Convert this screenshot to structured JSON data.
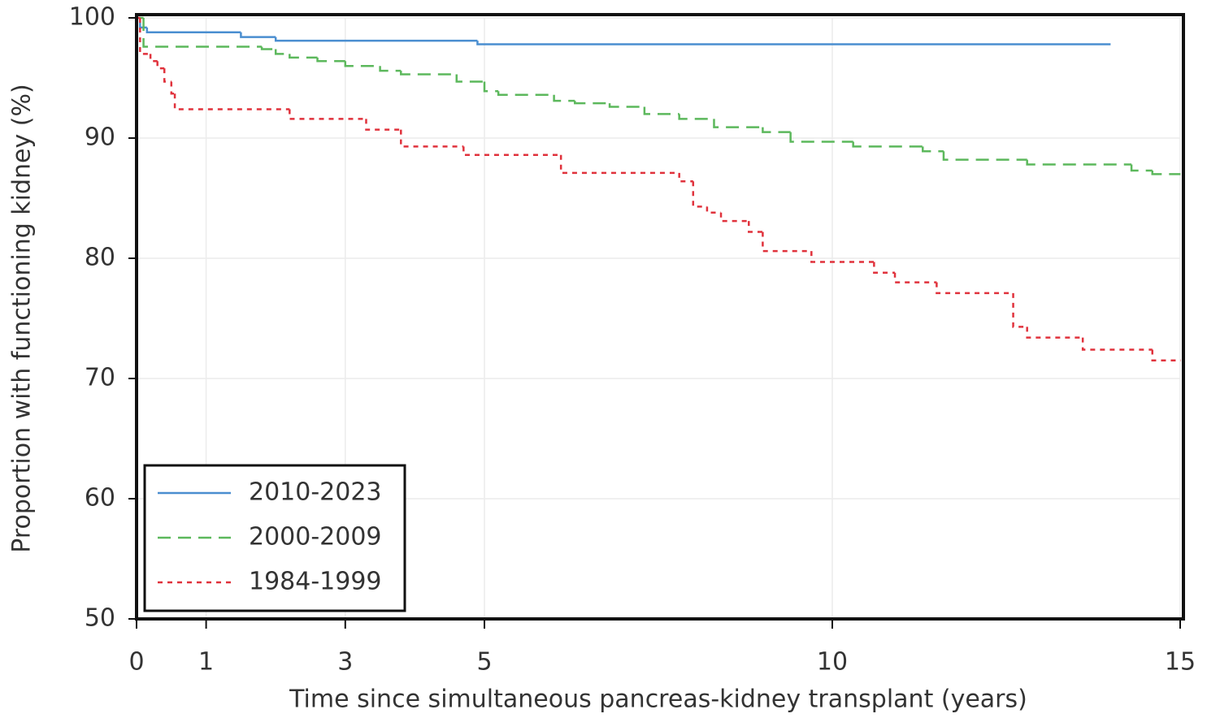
{
  "chart_data": {
    "type": "step",
    "xlabel": "Time since simultaneous pancreas-kidney transplant (years)",
    "ylabel": "Proportion with functioning kidney (%)",
    "xlim": [
      0,
      15
    ],
    "ylim": [
      50,
      100
    ],
    "xticks": [
      0,
      1,
      3,
      5,
      10,
      15
    ],
    "yticks": [
      50,
      60,
      70,
      80,
      90,
      100
    ],
    "grid": true,
    "legend": "lower left",
    "series": [
      {
        "name": "2010-2023",
        "color": "#4a8ed0",
        "dash": "none",
        "x": [
          0,
          0.05,
          0.15,
          1.5,
          2.0,
          4.9,
          14
        ],
        "values": [
          100,
          99.2,
          98.8,
          98.4,
          98.1,
          97.8,
          97.8
        ]
      },
      {
        "name": "2000-2009",
        "color": "#5cb85c",
        "dash": "16 9",
        "x": [
          0,
          0.1,
          1.8,
          2.0,
          2.2,
          2.6,
          3.0,
          3.5,
          3.8,
          4.6,
          5.0,
          5.2,
          6.0,
          6.3,
          6.8,
          7.3,
          7.8,
          8.3,
          9.0,
          9.4,
          10.3,
          11.3,
          11.6,
          12.8,
          14.3,
          14.6,
          15
        ],
        "values": [
          100,
          97.6,
          97.4,
          97.0,
          96.7,
          96.4,
          96.0,
          95.6,
          95.3,
          94.7,
          93.9,
          93.6,
          93.1,
          92.9,
          92.6,
          92.0,
          91.6,
          90.9,
          90.5,
          89.7,
          89.3,
          88.9,
          88.2,
          87.8,
          87.3,
          87.0,
          87.0
        ]
      },
      {
        "name": "1984-1999",
        "color": "#e0323c",
        "dash": "6 6",
        "x": [
          0,
          0.05,
          0.2,
          0.3,
          0.4,
          0.5,
          0.55,
          2.2,
          3.3,
          3.8,
          4.7,
          6.1,
          7.8,
          8.0,
          8.2,
          8.4,
          8.8,
          9.0,
          9.7,
          10.6,
          10.9,
          11.5,
          12.6,
          12.8,
          13.6,
          14.6,
          15
        ],
        "values": [
          100,
          97.0,
          96.4,
          95.8,
          94.7,
          93.7,
          92.4,
          91.6,
          90.7,
          89.3,
          88.6,
          87.1,
          86.4,
          84.3,
          83.8,
          83.1,
          82.2,
          80.6,
          79.7,
          78.8,
          78.0,
          77.1,
          74.3,
          73.4,
          72.4,
          71.5,
          71.5
        ]
      }
    ]
  }
}
